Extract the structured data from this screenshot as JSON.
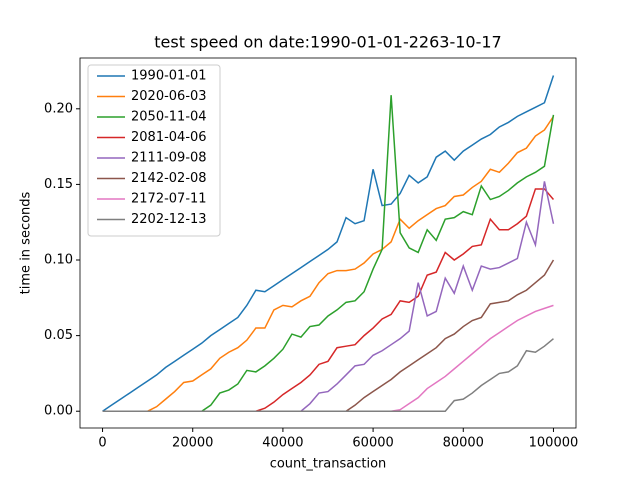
{
  "chart_data": {
    "type": "line",
    "title": "test speed on date:1990-01-01-2263-10-17",
    "xlabel": "count_transaction",
    "ylabel": "time in seconds",
    "x": [
      0,
      2000,
      4000,
      6000,
      8000,
      10000,
      12000,
      14000,
      16000,
      18000,
      20000,
      22000,
      24000,
      26000,
      28000,
      30000,
      32000,
      34000,
      36000,
      38000,
      40000,
      42000,
      44000,
      46000,
      48000,
      50000,
      52000,
      54000,
      56000,
      58000,
      60000,
      62000,
      64000,
      66000,
      68000,
      70000,
      72000,
      74000,
      76000,
      78000,
      80000,
      82000,
      84000,
      86000,
      88000,
      90000,
      92000,
      94000,
      96000,
      98000,
      100000
    ],
    "series": [
      {
        "name": "1990-01-01",
        "color": "#1f77b4",
        "values": [
          0,
          0.004,
          0.008,
          0.012,
          0.016,
          0.02,
          0.024,
          0.029,
          0.033,
          0.037,
          0.041,
          0.045,
          0.05,
          0.054,
          0.058,
          0.062,
          0.07,
          0.08,
          0.079,
          0.083,
          0.087,
          0.091,
          0.095,
          0.099,
          0.103,
          0.107,
          0.112,
          0.128,
          0.124,
          0.126,
          0.16,
          0.136,
          0.137,
          0.144,
          0.156,
          0.151,
          0.155,
          0.168,
          0.172,
          0.166,
          0.172,
          0.176,
          0.18,
          0.183,
          0.188,
          0.191,
          0.195,
          0.198,
          0.201,
          0.204,
          0.222
        ]
      },
      {
        "name": "2020-06-03",
        "color": "#ff7f0e",
        "values": [
          0,
          0,
          0,
          0,
          0,
          0,
          0.003,
          0.008,
          0.013,
          0.019,
          0.02,
          0.024,
          0.028,
          0.035,
          0.039,
          0.042,
          0.047,
          0.055,
          0.055,
          0.067,
          0.07,
          0.069,
          0.073,
          0.076,
          0.085,
          0.091,
          0.093,
          0.093,
          0.094,
          0.098,
          0.104,
          0.107,
          0.112,
          0.127,
          0.121,
          0.126,
          0.13,
          0.134,
          0.136,
          0.142,
          0.143,
          0.148,
          0.152,
          0.16,
          0.158,
          0.164,
          0.171,
          0.174,
          0.182,
          0.186,
          0.195
        ]
      },
      {
        "name": "2050-11-04",
        "color": "#2ca02c",
        "values": [
          0,
          0,
          0,
          0,
          0,
          0,
          0,
          0,
          0,
          0,
          0,
          0,
          0.004,
          0.012,
          0.014,
          0.018,
          0.027,
          0.026,
          0.03,
          0.035,
          0.041,
          0.051,
          0.049,
          0.056,
          0.057,
          0.063,
          0.067,
          0.072,
          0.073,
          0.079,
          0.094,
          0.107,
          0.209,
          0.118,
          0.108,
          0.105,
          0.12,
          0.113,
          0.127,
          0.128,
          0.132,
          0.13,
          0.149,
          0.14,
          0.142,
          0.146,
          0.151,
          0.155,
          0.158,
          0.162,
          0.196
        ]
      },
      {
        "name": "2081-04-06",
        "color": "#d62728",
        "values": [
          0,
          0,
          0,
          0,
          0,
          0,
          0,
          0,
          0,
          0,
          0,
          0,
          0,
          0,
          0,
          0,
          0,
          0,
          0.002,
          0.006,
          0.011,
          0.015,
          0.019,
          0.024,
          0.031,
          0.033,
          0.042,
          0.043,
          0.044,
          0.05,
          0.055,
          0.061,
          0.064,
          0.073,
          0.072,
          0.076,
          0.09,
          0.092,
          0.105,
          0.1,
          0.104,
          0.109,
          0.11,
          0.127,
          0.12,
          0.12,
          0.124,
          0.129,
          0.147,
          0.147,
          0.14
        ]
      },
      {
        "name": "2111-09-08",
        "color": "#9467bd",
        "values": [
          0,
          0,
          0,
          0,
          0,
          0,
          0,
          0,
          0,
          0,
          0,
          0,
          0,
          0,
          0,
          0,
          0,
          0,
          0,
          0,
          0,
          0,
          0,
          0.005,
          0.012,
          0.013,
          0.018,
          0.024,
          0.03,
          0.031,
          0.037,
          0.04,
          0.044,
          0.048,
          0.053,
          0.085,
          0.063,
          0.066,
          0.088,
          0.078,
          0.096,
          0.08,
          0.096,
          0.094,
          0.095,
          0.098,
          0.101,
          0.125,
          0.11,
          0.152,
          0.124
        ]
      },
      {
        "name": "2142-02-08",
        "color": "#8c564b",
        "values": [
          0,
          0,
          0,
          0,
          0,
          0,
          0,
          0,
          0,
          0,
          0,
          0,
          0,
          0,
          0,
          0,
          0,
          0,
          0,
          0,
          0,
          0,
          0,
          0,
          0,
          0,
          0,
          0,
          0.004,
          0.009,
          0.013,
          0.017,
          0.021,
          0.026,
          0.03,
          0.034,
          0.038,
          0.042,
          0.048,
          0.051,
          0.056,
          0.06,
          0.062,
          0.071,
          0.072,
          0.073,
          0.077,
          0.08,
          0.085,
          0.09,
          0.1
        ]
      },
      {
        "name": "2172-07-11",
        "color": "#e377c2",
        "values": [
          0,
          0,
          0,
          0,
          0,
          0,
          0,
          0,
          0,
          0,
          0,
          0,
          0,
          0,
          0,
          0,
          0,
          0,
          0,
          0,
          0,
          0,
          0,
          0,
          0,
          0,
          0,
          0,
          0,
          0,
          0,
          0,
          0,
          0.001,
          0.005,
          0.009,
          0.015,
          0.019,
          0.023,
          0.028,
          0.033,
          0.038,
          0.043,
          0.048,
          0.052,
          0.056,
          0.06,
          0.063,
          0.066,
          0.068,
          0.07
        ]
      },
      {
        "name": "2202-12-13",
        "color": "#7f7f7f",
        "values": [
          0,
          0,
          0,
          0,
          0,
          0,
          0,
          0,
          0,
          0,
          0,
          0,
          0,
          0,
          0,
          0,
          0,
          0,
          0,
          0,
          0,
          0,
          0,
          0,
          0,
          0,
          0,
          0,
          0,
          0,
          0,
          0,
          0,
          0,
          0,
          0,
          0,
          0,
          0,
          0.007,
          0.008,
          0.012,
          0.017,
          0.021,
          0.025,
          0.026,
          0.03,
          0.04,
          0.039,
          0.043,
          0.048
        ]
      }
    ],
    "xlim": [
      -5000,
      105000
    ],
    "ylim": [
      -0.0111,
      0.2336
    ],
    "xticks": [
      0,
      20000,
      40000,
      60000,
      80000,
      100000
    ],
    "yticks": [
      {
        "value": 0,
        "label": "0.00"
      },
      0.05,
      {
        "value": 0.1,
        "label": "0.10"
      },
      0.15,
      {
        "value": 0.2,
        "label": "0.20"
      }
    ],
    "legend": "upper left"
  }
}
